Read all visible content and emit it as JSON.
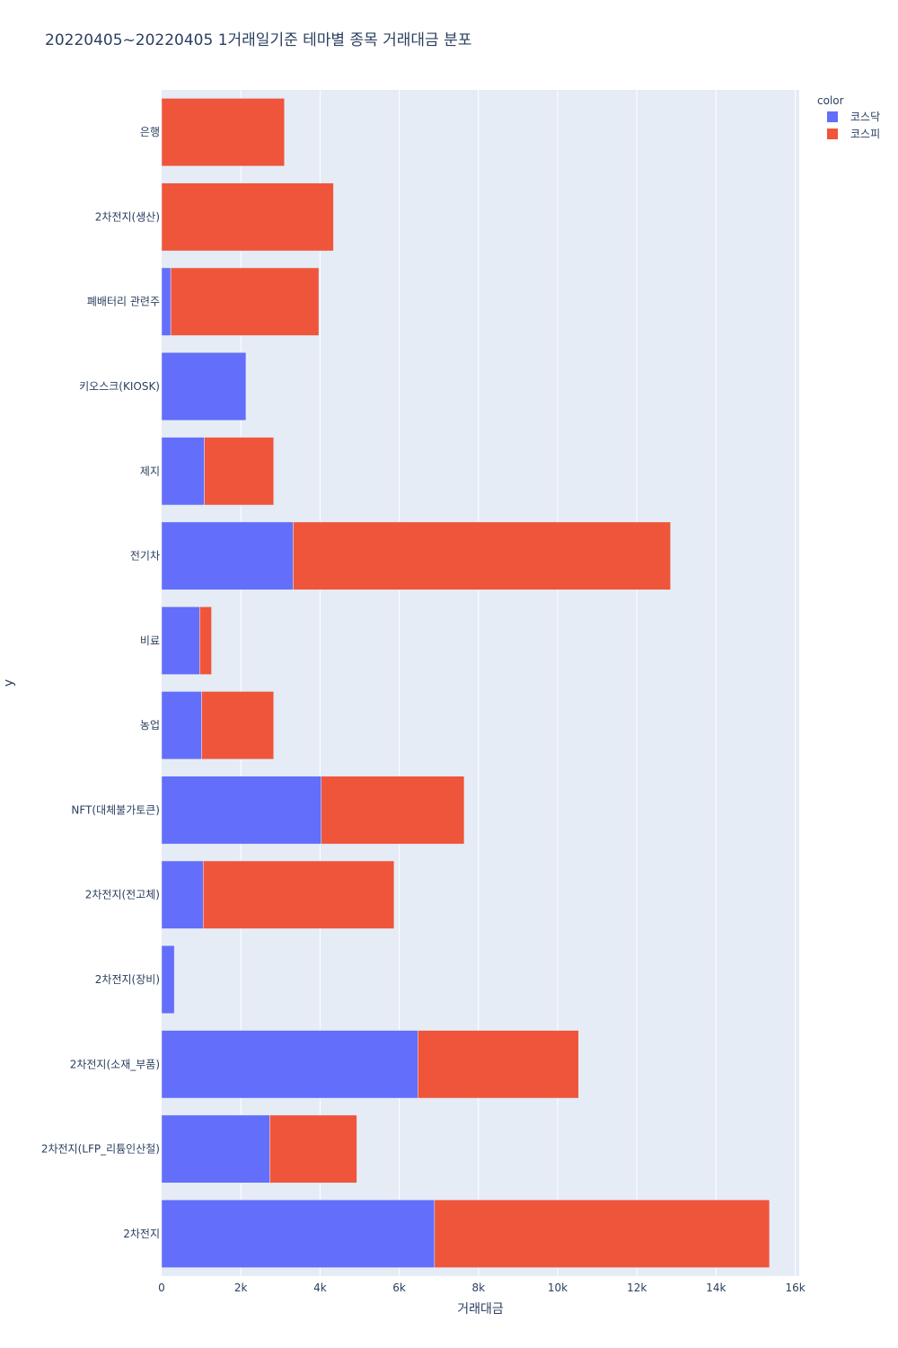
{
  "chart_data": {
    "type": "bar",
    "orientation": "horizontal",
    "barmode": "stack",
    "title": "20220405~20220405 1거래일기준 테마별 종목 거래대금 분포",
    "xlabel": "거래대금",
    "ylabel": "y",
    "xlim": [
      0,
      16100
    ],
    "x_ticks": [
      0,
      2000,
      4000,
      6000,
      8000,
      10000,
      12000,
      14000,
      16000
    ],
    "x_tick_labels": [
      "0",
      "2k",
      "4k",
      "6k",
      "8k",
      "10k",
      "12k",
      "14k",
      "16k"
    ],
    "grid": true,
    "legend": {
      "title": "color",
      "position": "top-right"
    },
    "categories": [
      "은행",
      "2차전지(생산)",
      "폐배터리 관련주",
      "키오스크(KIOSK)",
      "제지",
      "전기차",
      "비료",
      "농업",
      "NFT(대체불가토큰)",
      "2차전지(전고체)",
      "2차전지(장비)",
      "2차전지(소재_부품)",
      "2차전지(LFP_리튬인산철)",
      "2차전지"
    ],
    "series": [
      {
        "name": "코스닥",
        "color": "#636efa",
        "values": [
          0,
          0,
          230,
          2130,
          1080,
          3320,
          960,
          1010,
          4030,
          1050,
          320,
          6470,
          2730,
          6890
        ]
      },
      {
        "name": "코스피",
        "color": "#ef553b",
        "values": [
          3100,
          4340,
          3740,
          0,
          1750,
          9530,
          300,
          1820,
          3610,
          4820,
          0,
          4060,
          2200,
          8460
        ]
      }
    ]
  }
}
